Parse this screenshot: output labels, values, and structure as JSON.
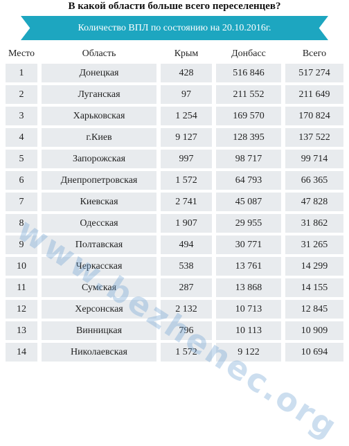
{
  "title": "В какой области больше всего переселенцев?",
  "banner": "Количество ВПЛ по состоянию на 20.10.2016г.",
  "watermark": "www.bezhenec.org",
  "colors": {
    "banner": "#1da6c0",
    "cell_bg": "#e8ebee"
  },
  "headers": [
    "Место",
    "Область",
    "Крым",
    "Донбасс",
    "Всего"
  ],
  "rows": [
    [
      "1",
      "Донецкая",
      "428",
      "516 846",
      "517 274"
    ],
    [
      "2",
      "Луганская",
      "97",
      "211 552",
      "211 649"
    ],
    [
      "3",
      "Харьковская",
      "1 254",
      "169 570",
      "170 824"
    ],
    [
      "4",
      "г.Киев",
      "9 127",
      "128 395",
      "137 522"
    ],
    [
      "5",
      "Запорожская",
      "997",
      "98 717",
      "99 714"
    ],
    [
      "6",
      "Днепропетровская",
      "1 572",
      "64 793",
      "66 365"
    ],
    [
      "7",
      "Киевская",
      "2 741",
      "45 087",
      "47 828"
    ],
    [
      "8",
      "Одесская",
      "1 907",
      "29 955",
      "31 862"
    ],
    [
      "9",
      "Полтавская",
      "494",
      "30 771",
      "31 265"
    ],
    [
      "10",
      "Черкасская",
      "538",
      "13 761",
      "14 299"
    ],
    [
      "11",
      "Сумская",
      "287",
      "13 868",
      "14 155"
    ],
    [
      "12",
      "Херсонская",
      "2 132",
      "10 713",
      "12 845"
    ],
    [
      "13",
      "Винницкая",
      "796",
      "10 113",
      "10 909"
    ],
    [
      "14",
      "Николаевская",
      "1 572",
      "9 122",
      "10 694"
    ]
  ]
}
